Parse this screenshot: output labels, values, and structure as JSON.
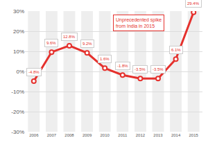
{
  "chart_data": {
    "type": "line",
    "annotation": [
      "Unprecedented spike",
      "from India in 2015"
    ],
    "categories": [
      "2006",
      "2007",
      "2008",
      "2009",
      "2010",
      "2011",
      "2012",
      "2013",
      "2014",
      "2015"
    ],
    "values": [
      -4.8,
      9.6,
      12.8,
      9.2,
      1.6,
      -1.8,
      -3.5,
      -3.5,
      6.1,
      29.4
    ],
    "value_labels": [
      "-4.8%",
      "9.6%",
      "12.8%",
      "9.2%",
      "1.6%",
      "-1.8%",
      "-3.5%",
      "-3.5%",
      "6.1%",
      "29.4%"
    ],
    "color": "#e5312d",
    "marker": "circle",
    "ylim": [
      -30,
      30
    ],
    "yticks": [
      {
        "value": -30,
        "label": "-30%"
      },
      {
        "value": -20,
        "label": "-20%"
      },
      {
        "value": -10,
        "label": "-10%"
      },
      {
        "value": 0,
        "label": "0%"
      },
      {
        "value": 10,
        "label": "10%"
      },
      {
        "value": 20,
        "label": "20%"
      },
      {
        "value": 30,
        "label": "30%"
      }
    ],
    "grid": true,
    "data_labels": true
  }
}
